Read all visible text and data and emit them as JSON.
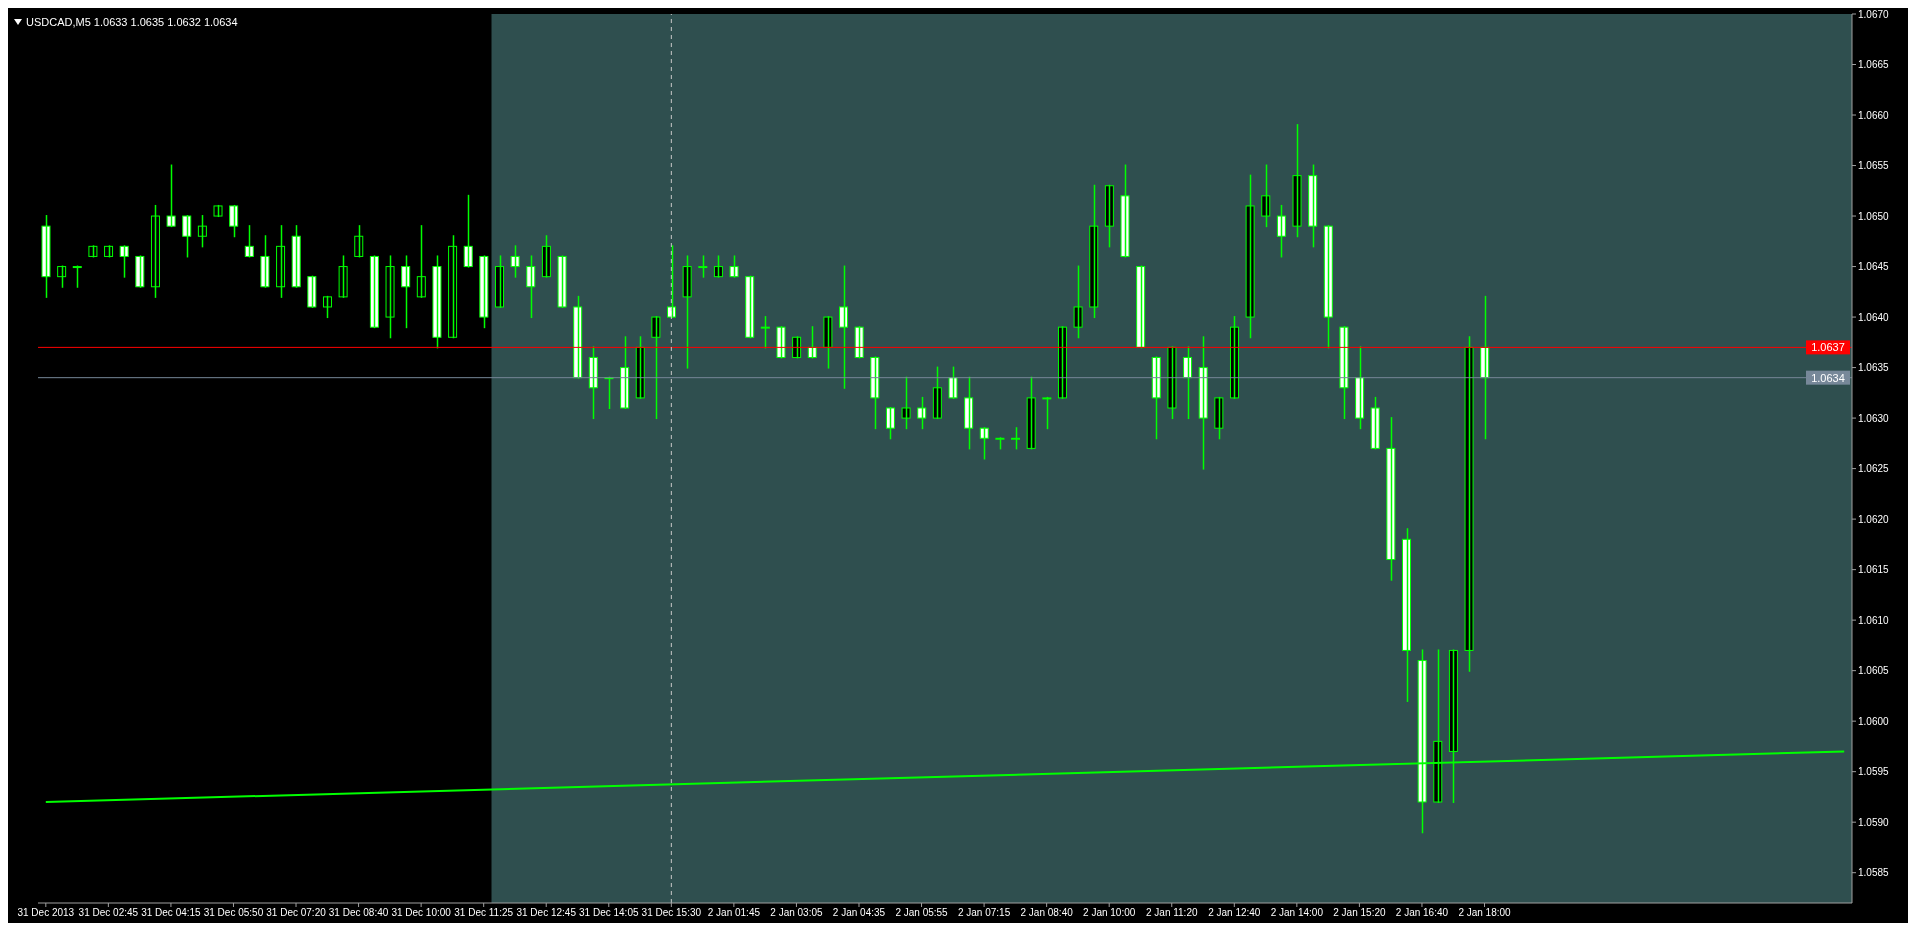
{
  "chart_data": {
    "type": "candlestick",
    "title": "USDCAD,M5 1.0633 1.0635 1.0632 1.0634",
    "color": "#00ff00",
    "categories": [
      "31 Dec 2013",
      null,
      null,
      null,
      "31 Dec 02:45",
      null,
      null,
      null,
      "31 Dec 04:15",
      null,
      null,
      null,
      "31 Dec 05:50",
      null,
      null,
      null,
      "31 Dec 07:20",
      null,
      null,
      null,
      "31 Dec 08:40",
      null,
      null,
      null,
      "31 Dec 10:00",
      null,
      null,
      null,
      "31 Dec 11:25",
      null,
      null,
      null,
      "31 Dec 12:45",
      null,
      null,
      null,
      "31 Dec 14:05",
      null,
      null,
      null,
      "31 Dec 15:30",
      null,
      null,
      null,
      "2 Jan 01:45",
      null,
      null,
      null,
      "2 Jan 03:05",
      null,
      null,
      null,
      "2 Jan 04:35",
      null,
      null,
      null,
      "2 Jan 05:55",
      null,
      null,
      null,
      "2 Jan 07:15",
      null,
      null,
      null,
      "2 Jan 08:40",
      null,
      null,
      null,
      "2 Jan 10:00",
      null,
      null,
      null,
      "2 Jan 11:20",
      null,
      null,
      null,
      "2 Jan 12:40",
      null,
      null,
      null,
      "2 Jan 14:00",
      null,
      null,
      null,
      "2 Jan 15:20",
      null,
      null,
      null,
      "2 Jan 16:40",
      null,
      null,
      null,
      "2 Jan 18:00",
      null,
      null,
      null,
      null,
      null,
      null,
      null,
      null,
      null,
      null,
      null,
      null,
      null,
      null,
      null,
      null,
      null,
      null,
      null,
      null,
      null,
      null,
      null
    ],
    "ohlc": [
      [
        1.0649,
        1.065,
        1.0642,
        1.0644
      ],
      [
        1.0644,
        1.0645,
        1.0643,
        1.0645
      ],
      [
        1.0645,
        1.0645,
        1.0643,
        1.0645
      ],
      [
        1.0646,
        1.0647,
        1.0646,
        1.0647
      ],
      [
        1.0646,
        1.0647,
        1.0646,
        1.0647
      ],
      [
        1.0647,
        1.0647,
        1.0644,
        1.0646
      ],
      [
        1.0646,
        1.0646,
        1.0643,
        1.0643
      ],
      [
        1.0643,
        1.0651,
        1.0642,
        1.065
      ],
      [
        1.065,
        1.0655,
        1.0649,
        1.0649
      ],
      [
        1.065,
        1.065,
        1.0646,
        1.0648
      ],
      [
        1.0648,
        1.065,
        1.0647,
        1.0649
      ],
      [
        1.065,
        1.0651,
        1.065,
        1.0651
      ],
      [
        1.0651,
        1.0651,
        1.0648,
        1.0649
      ],
      [
        1.0647,
        1.0649,
        1.0646,
        1.0646
      ],
      [
        1.0646,
        1.0648,
        1.0643,
        1.0643
      ],
      [
        1.0643,
        1.0649,
        1.0642,
        1.0647
      ],
      [
        1.0648,
        1.0649,
        1.0643,
        1.0643
      ],
      [
        1.0644,
        1.0644,
        1.0641,
        1.0641
      ],
      [
        1.0641,
        1.0642,
        1.064,
        1.0642
      ],
      [
        1.0642,
        1.0646,
        1.0642,
        1.0645
      ],
      [
        1.0646,
        1.0649,
        1.0646,
        1.0648
      ],
      [
        1.0646,
        1.0646,
        1.0639,
        1.0639
      ],
      [
        1.064,
        1.0646,
        1.0638,
        1.0645
      ],
      [
        1.0645,
        1.0646,
        1.0639,
        1.0643
      ],
      [
        1.0642,
        1.0649,
        1.0642,
        1.0644
      ],
      [
        1.0645,
        1.0646,
        1.0637,
        1.0638
      ],
      [
        1.0638,
        1.0648,
        1.0638,
        1.0647
      ],
      [
        1.0647,
        1.0652,
        1.0645,
        1.0645
      ],
      [
        1.0646,
        1.0646,
        1.0639,
        1.064
      ],
      [
        1.0641,
        1.0646,
        1.0641,
        1.0645
      ],
      [
        1.0646,
        1.0647,
        1.0644,
        1.0645
      ],
      [
        1.0645,
        1.0646,
        1.064,
        1.0643
      ],
      [
        1.0644,
        1.0648,
        1.0644,
        1.0647
      ],
      [
        1.0646,
        1.0646,
        1.0641,
        1.0641
      ],
      [
        1.0641,
        1.0642,
        1.0634,
        1.0634
      ],
      [
        1.0636,
        1.0637,
        1.063,
        1.0633
      ],
      [
        1.0634,
        1.0634,
        1.0631,
        1.0634
      ],
      [
        1.0635,
        1.0638,
        1.0631,
        1.0631
      ],
      [
        1.0632,
        1.0638,
        1.0632,
        1.0637
      ],
      [
        1.0638,
        1.064,
        1.063,
        1.064
      ],
      [
        1.0641,
        1.0647,
        1.064,
        1.064
      ],
      [
        1.0642,
        1.0646,
        1.0635,
        1.0645
      ],
      [
        1.0645,
        1.0646,
        1.0644,
        1.0645
      ],
      [
        1.0644,
        1.0646,
        1.0644,
        1.0645
      ],
      [
        1.0645,
        1.0646,
        1.0644,
        1.0644
      ],
      [
        1.0644,
        1.0644,
        1.0638,
        1.0638
      ],
      [
        1.0639,
        1.064,
        1.0637,
        1.0639
      ],
      [
        1.0639,
        1.0639,
        1.0636,
        1.0636
      ],
      [
        1.0636,
        1.0638,
        1.0636,
        1.0638
      ],
      [
        1.0637,
        1.0639,
        1.0636,
        1.0636
      ],
      [
        1.0637,
        1.064,
        1.0635,
        1.064
      ],
      [
        1.0641,
        1.0645,
        1.0633,
        1.0639
      ],
      [
        1.0639,
        1.0639,
        1.0636,
        1.0636
      ],
      [
        1.0636,
        1.0636,
        1.0629,
        1.0632
      ],
      [
        1.0631,
        1.0631,
        1.0628,
        1.0629
      ],
      [
        1.063,
        1.0634,
        1.0629,
        1.0631
      ],
      [
        1.0631,
        1.0632,
        1.0629,
        1.063
      ],
      [
        1.063,
        1.0635,
        1.063,
        1.0633
      ],
      [
        1.0634,
        1.0635,
        1.0632,
        1.0632
      ],
      [
        1.0632,
        1.0634,
        1.0627,
        1.0629
      ],
      [
        1.0629,
        1.0629,
        1.0626,
        1.0628
      ],
      [
        1.0628,
        1.0628,
        1.0627,
        1.0628
      ],
      [
        1.0628,
        1.0629,
        1.0627,
        1.0628
      ],
      [
        1.0627,
        1.0634,
        1.0627,
        1.0632
      ],
      [
        1.0632,
        1.0632,
        1.0629,
        1.0632
      ],
      [
        1.0632,
        1.0639,
        1.0632,
        1.0639
      ],
      [
        1.0639,
        1.0645,
        1.0638,
        1.0641
      ],
      [
        1.0641,
        1.0653,
        1.064,
        1.0649
      ],
      [
        1.0649,
        1.0653,
        1.0647,
        1.0653
      ],
      [
        1.0652,
        1.0655,
        1.0646,
        1.0646
      ],
      [
        1.0645,
        1.0645,
        1.0637,
        1.0637
      ],
      [
        1.0636,
        1.0636,
        1.0628,
        1.0632
      ],
      [
        1.0631,
        1.0637,
        1.063,
        1.0637
      ],
      [
        1.0636,
        1.0637,
        1.063,
        1.0634
      ],
      [
        1.0635,
        1.0638,
        1.0625,
        1.063
      ],
      [
        1.0629,
        1.0632,
        1.0628,
        1.0632
      ],
      [
        1.0632,
        1.064,
        1.0632,
        1.0639
      ],
      [
        1.064,
        1.0654,
        1.0638,
        1.0651
      ],
      [
        1.065,
        1.0655,
        1.0649,
        1.0652
      ],
      [
        1.065,
        1.0651,
        1.0646,
        1.0648
      ],
      [
        1.0649,
        1.0659,
        1.0648,
        1.0654
      ],
      [
        1.0654,
        1.0655,
        1.0647,
        1.0649
      ],
      [
        1.0649,
        1.0649,
        1.0637,
        1.064
      ],
      [
        1.0639,
        1.0639,
        1.063,
        1.0633
      ],
      [
        1.0634,
        1.0637,
        1.0629,
        1.063
      ],
      [
        1.0631,
        1.0632,
        1.0627,
        1.0627
      ],
      [
        1.0627,
        1.063,
        1.0614,
        1.0616
      ],
      [
        1.0618,
        1.0619,
        1.0602,
        1.0607
      ],
      [
        1.0606,
        1.0607,
        1.0589,
        1.0592
      ],
      [
        1.0592,
        1.0607,
        1.0592,
        1.0598
      ],
      [
        1.0597,
        1.0607,
        1.0592,
        1.0607
      ],
      [
        1.0607,
        1.0638,
        1.0605,
        1.0637
      ],
      [
        1.0637,
        1.0642,
        1.0628,
        1.0634
      ],
      null,
      null,
      null,
      null,
      null,
      null,
      null,
      null,
      null,
      null,
      null,
      null,
      null,
      null,
      null,
      null,
      null,
      null,
      null,
      null,
      null,
      null,
      null
    ],
    "series": [
      {
        "type": "line",
        "color": "#00ff00",
        "values": [
          1.0592,
          null,
          null,
          null,
          null,
          null,
          null,
          null,
          null,
          null,
          null,
          null,
          null,
          null,
          null,
          null,
          null,
          null,
          null,
          null,
          null,
          null,
          null,
          null,
          null,
          null,
          null,
          null,
          null,
          null,
          null,
          null,
          null,
          null,
          null,
          null,
          null,
          null,
          null,
          null,
          null,
          null,
          null,
          null,
          null,
          null,
          null,
          null,
          null,
          null,
          null,
          null,
          null,
          null,
          null,
          null,
          null,
          null,
          null,
          null,
          null,
          null,
          null,
          null,
          null,
          null,
          null,
          null,
          null,
          null,
          null,
          null,
          null,
          null,
          null,
          null,
          null,
          null,
          null,
          null,
          null,
          null,
          null,
          null,
          null,
          null,
          null,
          null,
          null,
          null,
          null,
          null,
          null,
          null,
          null,
          null,
          null,
          null,
          null,
          null,
          null,
          null,
          null,
          null,
          null,
          null,
          null,
          null,
          null,
          null,
          null,
          null,
          null,
          null,
          null,
          1.0597
        ]
      }
    ],
    "ylim": [
      1.0582,
      1.067
    ],
    "yticks": [
      {
        "value": 1.0585,
        "label": "1.0585"
      },
      {
        "value": 1.059,
        "label": "1.0590"
      },
      {
        "value": 1.0595,
        "label": "1.0595"
      },
      {
        "value": 1.06,
        "label": "1.0600"
      },
      {
        "value": 1.0605,
        "label": "1.0605"
      },
      {
        "value": 1.061,
        "label": "1.0610"
      },
      {
        "value": 1.0615,
        "label": "1.0615"
      },
      {
        "value": 1.062,
        "label": "1.0620"
      },
      {
        "value": 1.0625,
        "label": "1.0625"
      },
      {
        "value": 1.063,
        "label": "1.0630"
      },
      {
        "value": 1.0635,
        "label": "1.0635"
      },
      {
        "value": 1.064,
        "label": "1.0640"
      },
      {
        "value": 1.0645,
        "label": "1.0645"
      },
      {
        "value": 1.065,
        "label": "1.0650"
      },
      {
        "value": 1.0655,
        "label": "1.0655"
      },
      {
        "value": 1.066,
        "label": "1.0660"
      },
      {
        "value": 1.0665,
        "label": "1.0665"
      },
      {
        "value": 1.067,
        "label": "1.0670"
      }
    ],
    "ref_lines": [
      {
        "axis": "y",
        "value": 1.0637,
        "label": "1.0637",
        "color": "#ff0000"
      },
      {
        "axis": "y",
        "value": 1.0634,
        "label": "1.0634",
        "color": "#778899"
      },
      {
        "axis": "x",
        "value": "31 Dec 15:30",
        "color": "#c8c8c8",
        "line_style": "dashed"
      }
    ],
    "bands": [
      {
        "axis": "x",
        "from": "31 Dec 2013",
        "to": "31 Dec 11:25",
        "color": "#000000"
      }
    ],
    "grid": false
  }
}
